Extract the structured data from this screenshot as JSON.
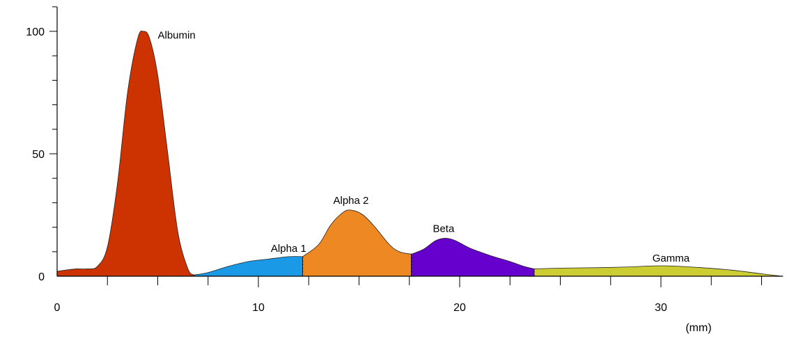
{
  "chart_data": {
    "type": "area",
    "title": "",
    "xlabel": "",
    "ylabel": "",
    "x_unit_label": "(mm)",
    "xlim": [
      0,
      36
    ],
    "ylim": [
      0,
      110
    ],
    "x_ticks": [
      0,
      10,
      20,
      30
    ],
    "y_ticks": [
      0,
      50,
      100
    ],
    "grid": false,
    "legend": "none",
    "fractions": [
      {
        "name": "Albumin",
        "color": "#cc3300",
        "x_range": [
          0,
          6.8
        ],
        "points": [
          [
            0,
            2
          ],
          [
            0.5,
            2.6
          ],
          [
            1,
            3
          ],
          [
            1.5,
            3
          ],
          [
            2,
            4
          ],
          [
            2.5,
            12
          ],
          [
            3,
            38
          ],
          [
            3.5,
            75
          ],
          [
            4,
            97
          ],
          [
            4.3,
            100
          ],
          [
            4.6,
            97
          ],
          [
            5,
            82
          ],
          [
            5.5,
            50
          ],
          [
            6,
            18
          ],
          [
            6.5,
            3
          ],
          [
            6.8,
            0.5
          ]
        ]
      },
      {
        "name": "Alpha 1",
        "color": "#1a99e6",
        "x_range": [
          6.8,
          12.2
        ],
        "points": [
          [
            6.8,
            0.5
          ],
          [
            7.5,
            1.5
          ],
          [
            8.5,
            4
          ],
          [
            9.5,
            6
          ],
          [
            10.5,
            7
          ],
          [
            11.5,
            8
          ],
          [
            12.2,
            8
          ]
        ]
      },
      {
        "name": "Alpha 2",
        "color": "#ee8822",
        "x_range": [
          12.2,
          17.6
        ],
        "points": [
          [
            12.2,
            8
          ],
          [
            13,
            13
          ],
          [
            13.6,
            21
          ],
          [
            14.2,
            26
          ],
          [
            14.6,
            27
          ],
          [
            15.2,
            25
          ],
          [
            15.8,
            20
          ],
          [
            16.5,
            13
          ],
          [
            17,
            10
          ],
          [
            17.6,
            9
          ]
        ]
      },
      {
        "name": "Beta",
        "color": "#6600cc",
        "x_range": [
          17.6,
          23.7
        ],
        "points": [
          [
            17.6,
            9
          ],
          [
            18.2,
            11
          ],
          [
            18.8,
            14.5
          ],
          [
            19.3,
            15.5
          ],
          [
            19.8,
            14.5
          ],
          [
            20.5,
            11.5
          ],
          [
            21.5,
            8.5
          ],
          [
            22.5,
            6
          ],
          [
            23.2,
            4
          ],
          [
            23.7,
            3
          ]
        ]
      },
      {
        "name": "Gamma",
        "color": "#cccc33",
        "x_range": [
          23.7,
          36
        ],
        "points": [
          [
            23.7,
            3
          ],
          [
            25,
            3.3
          ],
          [
            27,
            3.5
          ],
          [
            28.5,
            3.8
          ],
          [
            29.5,
            4.2
          ],
          [
            30.5,
            4.2
          ],
          [
            32,
            3.5
          ],
          [
            33.5,
            2.5
          ],
          [
            35,
            1
          ],
          [
            36,
            0
          ]
        ]
      }
    ],
    "labels": [
      {
        "text": "Albumin",
        "x": 5.0,
        "y": 97
      },
      {
        "text": "Alpha 1",
        "x": 11.5,
        "y": 10
      },
      {
        "text": "Alpha 2",
        "x": 14.6,
        "y": 29.5
      },
      {
        "text": "Beta",
        "x": 19.2,
        "y": 18
      },
      {
        "text": "Gamma",
        "x": 30.5,
        "y": 6
      }
    ]
  }
}
